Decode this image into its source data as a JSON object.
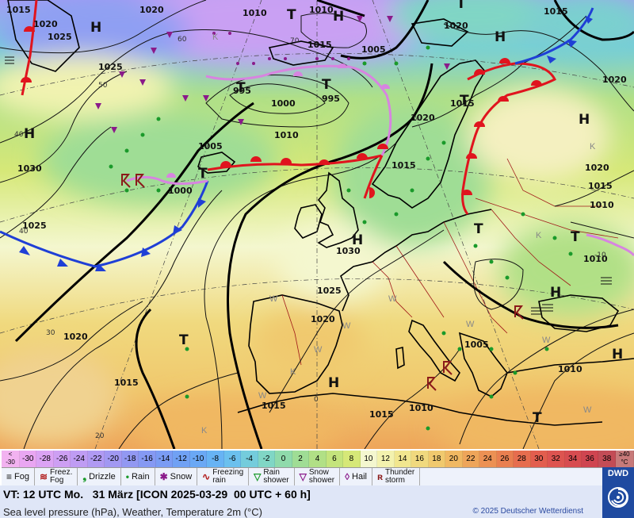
{
  "map": {
    "highs": [
      "H",
      "H",
      "H",
      "H",
      "H",
      "H",
      "H",
      "H",
      "H"
    ],
    "lows": [
      "T",
      "T",
      "T",
      "T",
      "T",
      "T",
      "T",
      "T",
      "T",
      "T"
    ],
    "isobars": [
      "1015",
      "1020",
      "1025",
      "1020",
      "1010",
      "1010",
      "1015",
      "1005",
      "1000",
      "995",
      "995",
      "1010",
      "1005",
      "1000",
      "1020",
      "1015",
      "1020",
      "1025",
      "1030",
      "1025",
      "1020",
      "1015",
      "1020",
      "1030",
      "1020",
      "1015",
      "1010",
      "1025",
      "1015",
      "1010",
      "1005",
      "1010",
      "1010",
      "1015",
      "1015",
      "1015",
      "1020",
      "1025"
    ],
    "temp_labels": [
      "60",
      "70",
      "50",
      "40",
      "40",
      "30",
      "20",
      "0",
      "-10"
    ],
    "colors": {
      "cold_front": "#1f3fd6",
      "warm_front": "#e0141e",
      "occlusion": "#d784e0",
      "land_border": "#000000",
      "country_border": "#a01818"
    }
  },
  "scale": {
    "left_cap": "<\n-30",
    "values": [
      "-30",
      "-28",
      "-26",
      "-24",
      "-22",
      "-20",
      "-18",
      "-16",
      "-14",
      "-12",
      "-10",
      "-8",
      "-6",
      "-4",
      "-2",
      "0",
      "2",
      "4",
      "6",
      "8",
      "10",
      "12",
      "14",
      "16",
      "18",
      "20",
      "22",
      "24",
      "26",
      "28",
      "30",
      "32",
      "34",
      "36",
      "38"
    ],
    "right_cap": "≥40\n°C",
    "colors": [
      "#e9a6f2",
      "#dba3f4",
      "#cd9ff3",
      "#bf9cf3",
      "#b09af3",
      "#a198f2",
      "#9298f2",
      "#8599f3",
      "#7a9cf4",
      "#70a1f4",
      "#6aa8f5",
      "#67b3f4",
      "#6bc0ee",
      "#74ccdc",
      "#80d6c5",
      "#8fdaab",
      "#9fdd95",
      "#b1e086",
      "#c4e47c",
      "#d6e878",
      "#f4f7cf",
      "#f3f2ae",
      "#f1e68f",
      "#f0d97e",
      "#f0c96e",
      "#f0b862",
      "#eea55a",
      "#ec9154",
      "#e97f50",
      "#e66d4e",
      "#e25e4e",
      "#dd5450",
      "#d74c50",
      "#cf4550",
      "#c34c56"
    ]
  },
  "legend": [
    {
      "icon": "fog-icon",
      "label": "Fog"
    },
    {
      "icon": "freezing-fog-icon",
      "label": "Freez.\nFog"
    },
    {
      "icon": "drizzle-icon",
      "label": "Drizzle"
    },
    {
      "icon": "rain-icon",
      "label": "Rain"
    },
    {
      "icon": "snow-icon",
      "label": "Snow"
    },
    {
      "icon": "freezing-rain-icon",
      "label": "Freezing\nrain"
    },
    {
      "icon": "rain-shower-icon",
      "label": "Rain\nshower"
    },
    {
      "icon": "snow-shower-icon",
      "label": "Snow\nshower"
    },
    {
      "icon": "hail-icon",
      "label": "Hail"
    },
    {
      "icon": "thunderstorm-icon",
      "label": "Thunder\nstorm"
    }
  ],
  "footer": {
    "valid_time": "VT: 12 UTC Mo.   31 März [ICON 2025-03-29  00 UTC + 60 h]",
    "product": "Sea level pressure (hPa), Weather, Temperature 2m (°C)",
    "copyright": "© 2025 Deutscher Wetterdienst",
    "logo_text": "DWD"
  }
}
